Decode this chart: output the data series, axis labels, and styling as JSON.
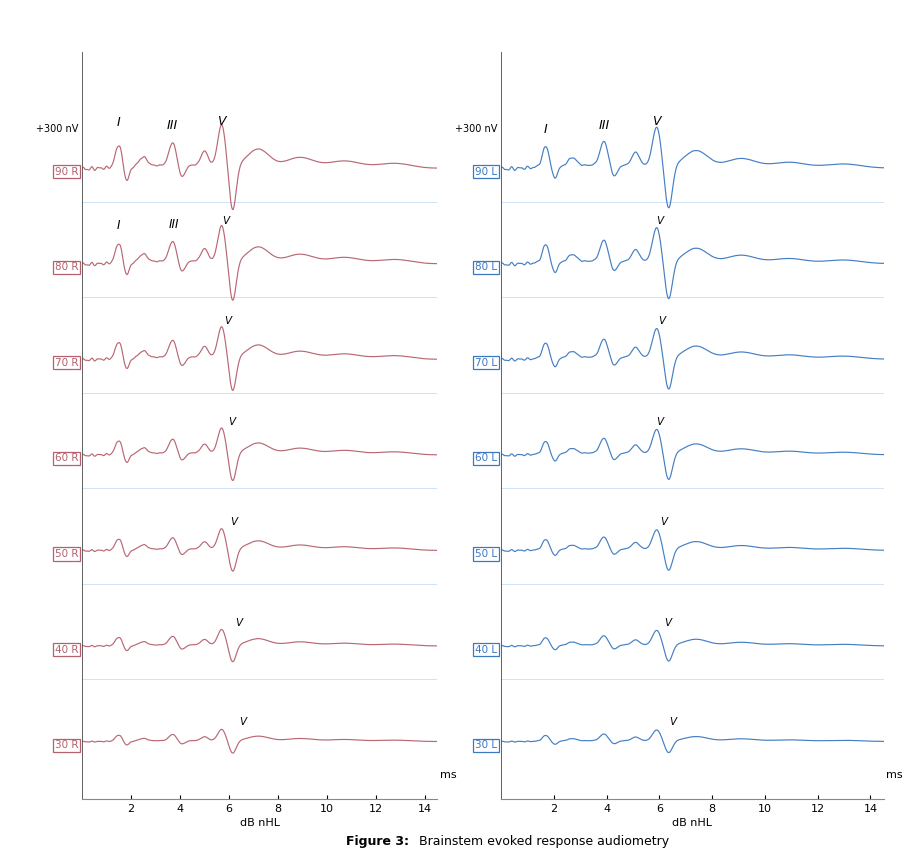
{
  "title_bold": "Figure 3:",
  "title_normal": " Brainstem evoked response audiometry",
  "xlabel": "dB nHL",
  "ms_label": "ms",
  "x_ticks": [
    2,
    4,
    6,
    8,
    10,
    12,
    14
  ],
  "x_range": [
    0,
    14.5
  ],
  "right_labels": [
    "90 R",
    "80 R",
    "70 R",
    "60 R",
    "50 R",
    "40 R",
    "30 R"
  ],
  "left_labels": [
    "90 L",
    "80 L",
    "70 L",
    "60 L",
    "50 L",
    "40 L",
    "30 L"
  ],
  "right_color": "#b5606b",
  "left_color": "#3a78c0",
  "background_color": "#ffffff",
  "grid_color": "#ddeeff"
}
